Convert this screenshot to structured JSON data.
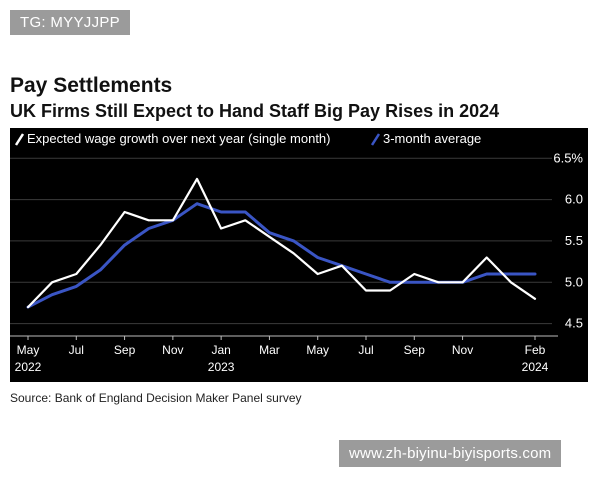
{
  "tag": "TG: MYYJJPP",
  "chart_data": {
    "type": "line",
    "title": "Pay Settlements",
    "subtitle": "UK Firms Still Expect to Hand Staff Big Pay Rises in 2024",
    "xlabel": "",
    "ylabel": "",
    "ylim": [
      4.35,
      6.6
    ],
    "yticks": [
      "6.5%",
      "6.0",
      "5.5",
      "5.0",
      "4.5"
    ],
    "ytick_values": [
      6.5,
      6.0,
      5.5,
      5.0,
      4.5
    ],
    "x": [
      "May 2022",
      "Jun 2022",
      "Jul 2022",
      "Aug 2022",
      "Sep 2022",
      "Oct 2022",
      "Nov 2022",
      "Dec 2022",
      "Jan 2023",
      "Feb 2023",
      "Mar 2023",
      "Apr 2023",
      "May 2023",
      "Jun 2023",
      "Jul 2023",
      "Aug 2023",
      "Sep 2023",
      "Oct 2023",
      "Nov 2023",
      "Dec 2023",
      "Jan 2024",
      "Feb 2024"
    ],
    "xticks": [
      {
        "month": "May",
        "year": "2022",
        "index": 0
      },
      {
        "month": "Jul",
        "year": "",
        "index": 2
      },
      {
        "month": "Sep",
        "year": "",
        "index": 4
      },
      {
        "month": "Nov",
        "year": "",
        "index": 6
      },
      {
        "month": "Jan",
        "year": "2023",
        "index": 8
      },
      {
        "month": "Mar",
        "year": "",
        "index": 10
      },
      {
        "month": "May",
        "year": "",
        "index": 12
      },
      {
        "month": "Jul",
        "year": "",
        "index": 14
      },
      {
        "month": "Sep",
        "year": "",
        "index": 16
      },
      {
        "month": "Nov",
        "year": "",
        "index": 18
      },
      {
        "month": "Feb",
        "year": "2024",
        "index": 21
      }
    ],
    "series": [
      {
        "name": "Expected wage growth over next year (single month)",
        "color": "#ffffff",
        "values": [
          4.7,
          5.0,
          5.1,
          5.45,
          5.85,
          5.75,
          5.75,
          6.25,
          5.65,
          5.75,
          5.55,
          5.35,
          5.1,
          5.2,
          4.9,
          4.9,
          5.1,
          5.0,
          5.0,
          5.3,
          5.0,
          4.8
        ]
      },
      {
        "name": "3-month average",
        "color": "#3a55c4",
        "values": [
          4.7,
          4.85,
          4.95,
          5.15,
          5.45,
          5.65,
          5.75,
          5.95,
          5.85,
          5.85,
          5.6,
          5.5,
          5.3,
          5.2,
          5.1,
          5.0,
          5.0,
          5.0,
          5.0,
          5.1,
          5.1,
          5.1
        ]
      }
    ],
    "legend": "top-left"
  },
  "source": "Source: Bank of England Decision Maker Panel survey",
  "watermark": "www.zh-biyinu-biyisports.com"
}
